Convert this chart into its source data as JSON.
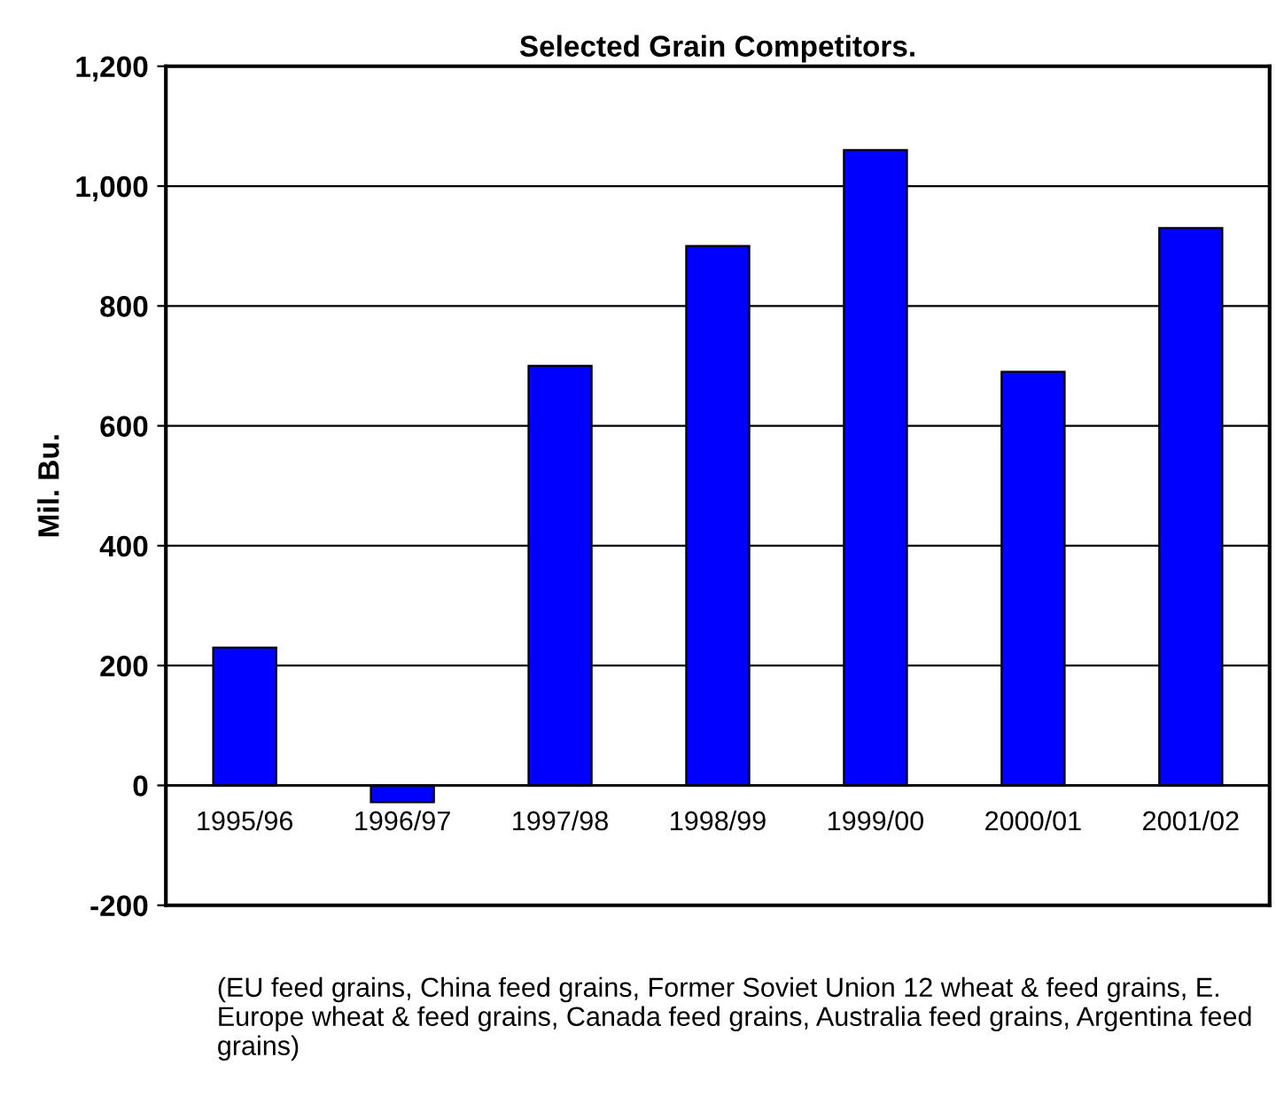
{
  "chart_data": {
    "type": "bar",
    "title": "Selected Grain Competitors.",
    "ylabel": "Mil. Bu.",
    "categories": [
      "1995/96",
      "1996/97",
      "1997/98",
      "1998/99",
      "1999/00",
      "2000/01",
      "2001/02"
    ],
    "values": [
      230,
      -28,
      700,
      900,
      1060,
      690,
      930
    ],
    "color": "#0000ff",
    "ylim": [
      -200,
      1200
    ],
    "yticks": [
      {
        "value": -200,
        "label": "-200"
      },
      {
        "value": 0,
        "label": "0"
      },
      {
        "value": 200,
        "label": "200"
      },
      {
        "value": 400,
        "label": "400"
      },
      {
        "value": 600,
        "label": "600"
      },
      {
        "value": 800,
        "label": "800"
      },
      {
        "value": 1000,
        "label": "1,000"
      },
      {
        "value": 1200,
        "label": "1,200"
      }
    ],
    "grid": "y",
    "legend": false,
    "annotations": [
      "(EU feed grains, China feed grains, Former Soviet Union 12 wheat & feed grains, E. Europe wheat & feed grains, Canada feed grains, Australia feed grains, Argentina feed grains)"
    ]
  }
}
